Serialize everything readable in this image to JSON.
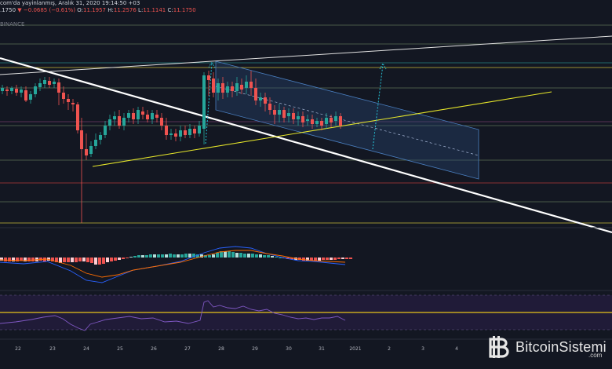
{
  "header": {
    "published": "com'da yayinlanmış, Aralık 31, 2020 19:14:50 +03",
    "ohlc_prefix": ".1750",
    "change_arrow": "▼",
    "change": "−0.0685 (−0.61%)",
    "open_label": "O:",
    "open": "11.1957",
    "high_label": "H:",
    "high": "11.2576",
    "low_label": "L:",
    "low": "11.1141",
    "close_label": "C:",
    "close": "11.1750",
    "exchange": "BINANCE"
  },
  "xaxis": {
    "ticks": [
      "22",
      "23",
      "24",
      "25",
      "26",
      "27",
      "28",
      "29",
      "30",
      "31",
      "2021",
      "2",
      "3",
      "4"
    ]
  },
  "logo": {
    "name": "BitcoinSistemi",
    "suffix": ".com"
  },
  "colors": {
    "background": "#131722",
    "up_candle": "#26a69a",
    "down_candle": "#ef5350",
    "trendline": "#ffffff",
    "support": "#e6e62a",
    "channel": "#3a6fb0",
    "projection": "#26c6da",
    "rsi_band": "#2b1f4a",
    "rsi_line": "#7e57c2",
    "macd_line": "#2962ff",
    "signal_line": "#ff6d00"
  }
}
